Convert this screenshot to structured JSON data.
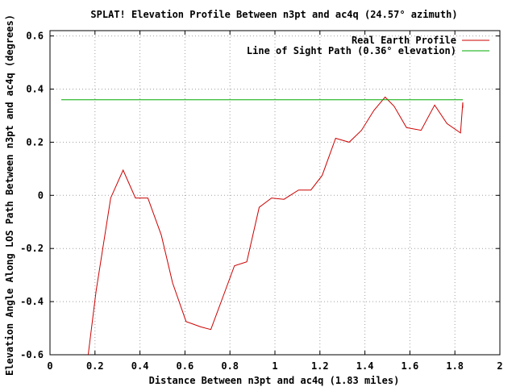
{
  "chart_data": {
    "type": "line",
    "title": "SPLAT! Elevation Profile Between n3pt and ac4q (24.57° azimuth)",
    "xlabel": "Distance Between n3pt and ac4q (1.83 miles)",
    "ylabel": "Elevation Angle Along LOS Path Between n3pt and ac4q (degrees)",
    "xlim": [
      0,
      2
    ],
    "ylim": [
      -0.6,
      0.62
    ],
    "xticks": [
      0,
      0.2,
      0.4,
      0.6,
      0.8,
      1,
      1.2,
      1.4,
      1.6,
      1.8,
      2
    ],
    "xtick_labels": [
      "0",
      "0.2",
      "0.4",
      "0.6",
      "0.8",
      "1",
      "1.2",
      "1.4",
      "1.6",
      "1.8",
      "2"
    ],
    "yticks": [
      -0.6,
      -0.4,
      -0.2,
      0,
      0.2,
      0.4,
      0.6
    ],
    "ytick_labels": [
      "-0.6",
      "-0.4",
      "-0.2",
      "0",
      "0.2",
      "0.4",
      "0.6"
    ],
    "grid": true,
    "legend_position": "top-right",
    "series": [
      {
        "name": "Real Earth Profile",
        "color": "#cc0000",
        "x": [
          0.17,
          0.205,
          0.27,
          0.325,
          0.38,
          0.435,
          0.495,
          0.545,
          0.605,
          0.67,
          0.715,
          0.77,
          0.82,
          0.875,
          0.93,
          0.985,
          1.04,
          1.105,
          1.16,
          1.21,
          1.27,
          1.33,
          1.385,
          1.44,
          1.49,
          1.53,
          1.585,
          1.65,
          1.71,
          1.765,
          1.825,
          1.835,
          1.835
        ],
        "y": [
          -0.6,
          -0.36,
          -0.01,
          0.095,
          -0.01,
          -0.01,
          -0.15,
          -0.33,
          -0.475,
          -0.495,
          -0.505,
          -0.38,
          -0.265,
          -0.25,
          -0.045,
          -0.01,
          -0.015,
          0.02,
          0.02,
          0.075,
          0.215,
          0.2,
          0.245,
          0.32,
          0.37,
          0.335,
          0.255,
          0.245,
          0.34,
          0.27,
          0.235,
          0.35,
          0.33
        ]
      },
      {
        "name": "Line of Sight Path (0.36° elevation)",
        "color": "#00aa00",
        "x": [
          0.05,
          1.835
        ],
        "y": [
          0.36,
          0.36
        ]
      }
    ]
  }
}
